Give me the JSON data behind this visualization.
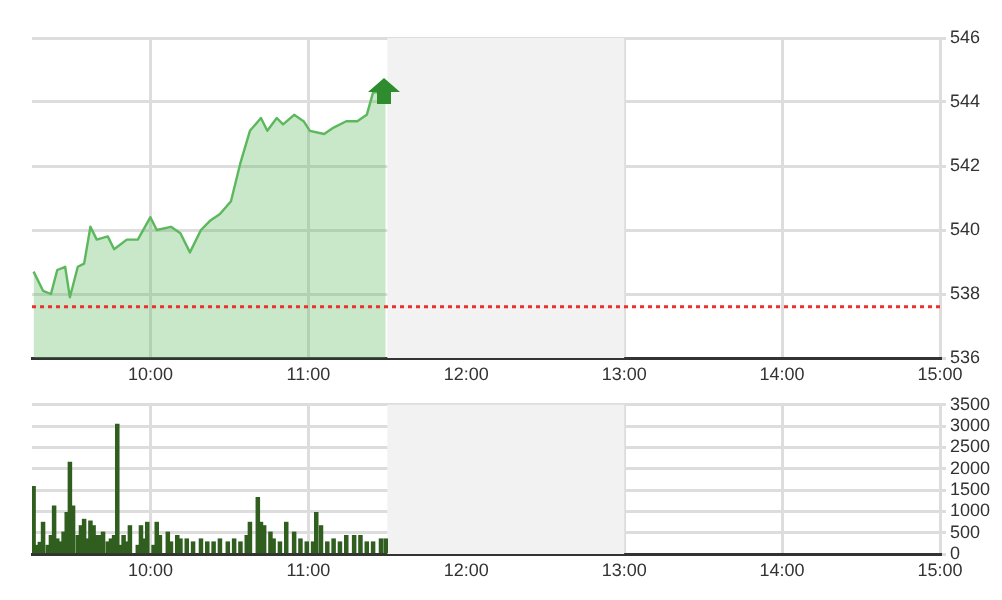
{
  "chart_data": [
    {
      "type": "area",
      "color": "#5cb85c",
      "marker": "none",
      "grid": true,
      "x": [
        9.26,
        9.32,
        9.37,
        9.41,
        9.46,
        9.49,
        9.54,
        9.58,
        9.62,
        9.66,
        9.73,
        9.77,
        9.85,
        9.92,
        10.0,
        10.04,
        10.13,
        10.19,
        10.25,
        10.32,
        10.38,
        10.44,
        10.51,
        10.57,
        10.63,
        10.7,
        10.74,
        10.8,
        10.84,
        10.91,
        10.97,
        11.01,
        11.1,
        11.16,
        11.24,
        11.31,
        11.37,
        11.41,
        11.49
      ],
      "values": [
        538.7,
        538.1,
        538.0,
        538.75,
        538.85,
        537.9,
        538.85,
        538.95,
        540.1,
        539.7,
        539.8,
        539.4,
        539.7,
        539.7,
        540.4,
        540.0,
        540.1,
        539.9,
        539.3,
        540.0,
        540.3,
        540.5,
        540.9,
        542.1,
        543.1,
        543.5,
        543.1,
        543.5,
        543.3,
        543.6,
        543.4,
        543.1,
        543.0,
        543.2,
        543.4,
        543.4,
        543.6,
        544.3,
        544.3
      ],
      "xlim": [
        9.25,
        15
      ],
      "xticks": [
        {
          "value": 10,
          "label": "10:00"
        },
        {
          "value": 11,
          "label": "11:00"
        },
        {
          "value": 12,
          "label": "12:00"
        },
        {
          "value": 13,
          "label": "13:00"
        },
        {
          "value": 14,
          "label": "14:00"
        },
        {
          "value": 15,
          "label": "15:00"
        }
      ],
      "ylim": [
        536,
        546
      ],
      "yticks": [
        536,
        538,
        540,
        542,
        544,
        546
      ],
      "ref_lines": [
        {
          "axis": "y",
          "value": 537.6,
          "color": "#e8322b",
          "line_style": "dotted"
        }
      ],
      "bands": [
        {
          "axis": "x",
          "from": 11.5,
          "to": 13,
          "color": "#f2f2f2"
        }
      ]
    },
    {
      "type": "bar",
      "color": "#2f5e1f",
      "grid": true,
      "x": [
        9.26,
        9.28,
        9.3,
        9.32,
        9.35,
        9.37,
        9.39,
        9.41,
        9.43,
        9.45,
        9.47,
        9.49,
        9.51,
        9.54,
        9.56,
        9.58,
        9.6,
        9.62,
        9.64,
        9.66,
        9.68,
        9.7,
        9.73,
        9.75,
        9.77,
        9.79,
        9.81,
        9.83,
        9.85,
        9.87,
        9.92,
        9.94,
        9.96,
        9.98,
        10.02,
        10.04,
        10.06,
        10.11,
        10.13,
        10.17,
        10.19,
        10.23,
        10.27,
        10.32,
        10.36,
        10.4,
        10.44,
        10.49,
        10.53,
        10.57,
        10.61,
        10.63,
        10.68,
        10.7,
        10.72,
        10.76,
        10.78,
        10.82,
        10.86,
        10.91,
        10.95,
        10.99,
        11.03,
        11.05,
        11.08,
        11.12,
        11.16,
        11.2,
        11.24,
        11.29,
        11.33,
        11.37,
        11.41,
        11.46,
        11.49
      ],
      "values": [
        1580,
        200,
        270,
        740,
        200,
        430,
        1120,
        350,
        280,
        510,
        970,
        2150,
        1120,
        430,
        660,
        810,
        350,
        770,
        660,
        430,
        430,
        510,
        280,
        350,
        430,
        3040,
        200,
        430,
        280,
        660,
        200,
        660,
        350,
        740,
        200,
        740,
        430,
        510,
        280,
        430,
        350,
        350,
        280,
        350,
        280,
        280,
        350,
        280,
        350,
        280,
        430,
        740,
        1320,
        740,
        660,
        510,
        350,
        280,
        740,
        510,
        350,
        280,
        280,
        970,
        660,
        280,
        350,
        280,
        430,
        430,
        430,
        280,
        280,
        350,
        350
      ],
      "xlim": [
        9.25,
        15
      ],
      "xticks": [
        {
          "value": 10,
          "label": "10:00"
        },
        {
          "value": 11,
          "label": "11:00"
        },
        {
          "value": 12,
          "label": "12:00"
        },
        {
          "value": 13,
          "label": "13:00"
        },
        {
          "value": 14,
          "label": "14:00"
        },
        {
          "value": 15,
          "label": "15:00"
        }
      ],
      "ylim": [
        0,
        3500
      ],
      "yticks": [
        0,
        500,
        1000,
        1500,
        2000,
        2500,
        3000,
        3500
      ],
      "bands": [
        {
          "axis": "x",
          "from": 11.5,
          "to": 13,
          "color": "#f2f2f2"
        }
      ]
    }
  ]
}
